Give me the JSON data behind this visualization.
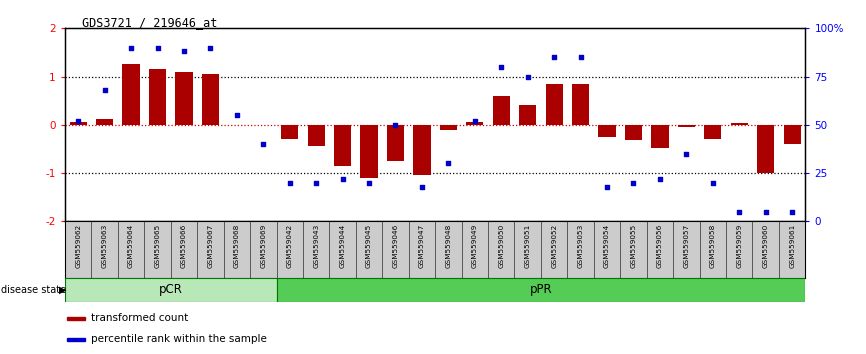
{
  "title": "GDS3721 / 219646_at",
  "samples": [
    "GSM559062",
    "GSM559063",
    "GSM559064",
    "GSM559065",
    "GSM559066",
    "GSM559067",
    "GSM559068",
    "GSM559069",
    "GSM559042",
    "GSM559043",
    "GSM559044",
    "GSM559045",
    "GSM559046",
    "GSM559047",
    "GSM559048",
    "GSM559049",
    "GSM559050",
    "GSM559051",
    "GSM559052",
    "GSM559053",
    "GSM559054",
    "GSM559055",
    "GSM559056",
    "GSM559057",
    "GSM559058",
    "GSM559059",
    "GSM559060",
    "GSM559061"
  ],
  "bar_values": [
    0.05,
    0.12,
    1.25,
    1.15,
    1.1,
    1.05,
    0.0,
    0.0,
    -0.3,
    -0.45,
    -0.85,
    -1.1,
    -0.75,
    -1.05,
    -0.1,
    0.05,
    0.6,
    0.42,
    0.85,
    0.85,
    -0.25,
    -0.32,
    -0.48,
    -0.05,
    -0.3,
    0.03,
    -1.0,
    -0.4
  ],
  "dot_values": [
    52,
    68,
    90,
    90,
    88,
    90,
    55,
    40,
    20,
    20,
    22,
    20,
    50,
    18,
    30,
    52,
    80,
    75,
    85,
    85,
    18,
    20,
    22,
    35,
    20,
    5,
    5,
    5
  ],
  "groups": [
    {
      "label": "pCR",
      "start": 0,
      "end": 8,
      "color": "#b8e8b8"
    },
    {
      "label": "pPR",
      "start": 8,
      "end": 28,
      "color": "#55cc55"
    }
  ],
  "bar_color": "#aa0000",
  "dot_color": "#0000cc",
  "ylim_left": [
    -2,
    2
  ],
  "ylim_right": [
    0,
    100
  ],
  "yticks_left": [
    -2,
    -1,
    0,
    1,
    2
  ],
  "yticks_right": [
    0,
    25,
    50,
    75,
    100
  ],
  "ytick_labels_right": [
    "0",
    "25",
    "50",
    "75",
    "100%"
  ],
  "legend_items": [
    {
      "label": "transformed count",
      "color": "#aa0000"
    },
    {
      "label": "percentile rank within the sample",
      "color": "#0000cc"
    }
  ],
  "disease_state_label": "disease state",
  "background_color": "#ffffff",
  "pcr_count": 8,
  "ppr_count": 20
}
